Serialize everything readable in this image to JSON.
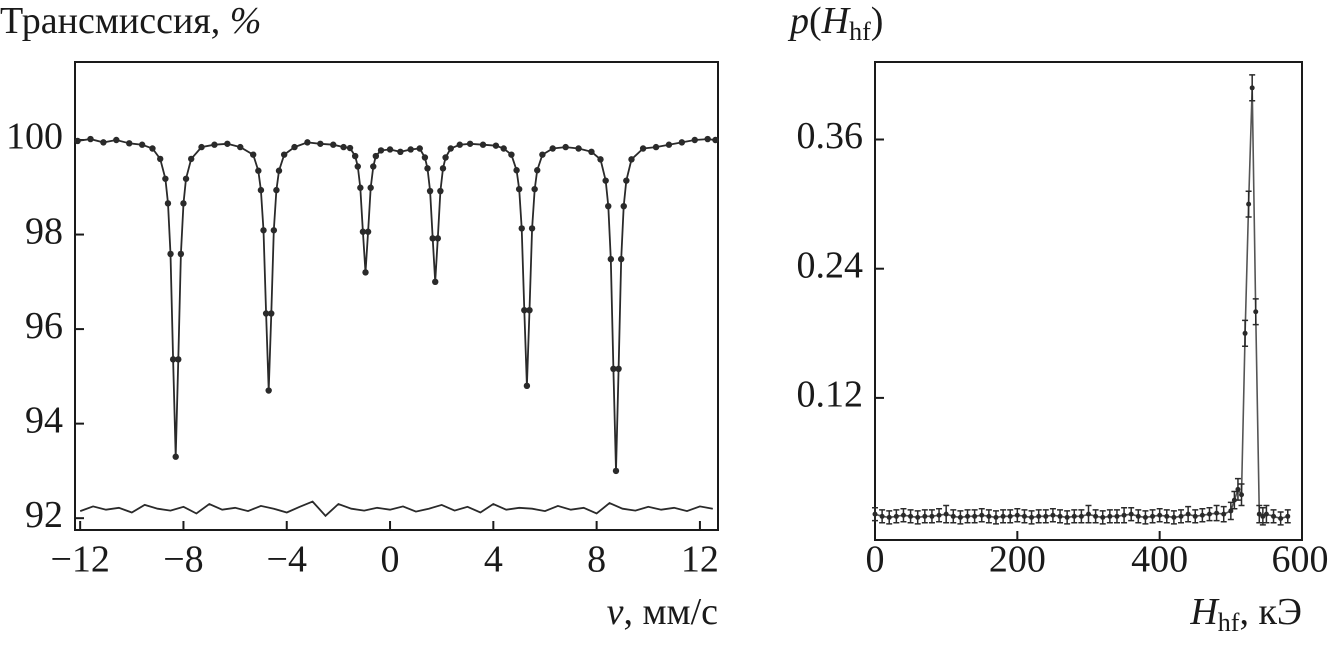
{
  "chart_data": [
    {
      "type": "line",
      "xlabel_parts": [
        "v",
        ", мм/с"
      ],
      "ylabel_parts": [
        "Трансмиссия, ",
        "%"
      ],
      "xlim": [
        -12.2,
        12.7
      ],
      "ylim": [
        91.75,
        101.65
      ],
      "xticks": [
        {
          "value": -12,
          "label": "−12"
        },
        {
          "value": -8,
          "label": "−8"
        },
        {
          "value": -4,
          "label": "−4"
        },
        0,
        4,
        8,
        12
      ],
      "yticks": [
        92,
        94,
        96,
        98,
        100
      ],
      "series": [
        {
          "color": "#2a2a2a",
          "markers": true,
          "x": [
            -12.1,
            -11.6,
            -11.1,
            -10.6,
            -10.1,
            -9.6,
            -9.2,
            -8.9,
            -8.7,
            -8.6,
            -8.5,
            -8.4,
            -8.3,
            -8.2,
            -8.1,
            -8.0,
            -7.9,
            -7.7,
            -7.3,
            -6.8,
            -6.3,
            -5.8,
            -5.3,
            -5.1,
            -5.0,
            -4.9,
            -4.8,
            -4.7,
            -4.6,
            -4.5,
            -4.4,
            -4.3,
            -4.1,
            -3.7,
            -3.2,
            -2.7,
            -2.2,
            -1.8,
            -1.55,
            -1.35,
            -1.25,
            -1.15,
            -1.05,
            -0.95,
            -0.85,
            -0.75,
            -0.65,
            -0.55,
            -0.35,
            0.0,
            0.4,
            0.8,
            1.15,
            1.35,
            1.45,
            1.55,
            1.65,
            1.75,
            1.85,
            1.95,
            2.05,
            2.15,
            2.35,
            2.7,
            3.1,
            3.6,
            4.1,
            4.4,
            4.7,
            4.9,
            5.0,
            5.1,
            5.2,
            5.3,
            5.4,
            5.5,
            5.6,
            5.7,
            5.9,
            6.3,
            6.8,
            7.3,
            7.8,
            8.15,
            8.35,
            8.45,
            8.55,
            8.65,
            8.75,
            8.85,
            8.95,
            9.05,
            9.15,
            9.35,
            9.8,
            10.3,
            10.8,
            11.3,
            11.8,
            12.3,
            12.6
          ],
          "values": [
            99.98,
            100.02,
            99.95,
            100.0,
            99.93,
            99.9,
            99.82,
            99.6,
            99.18,
            98.66,
            97.59,
            95.36,
            93.3,
            95.36,
            97.59,
            98.66,
            99.18,
            99.6,
            99.85,
            99.9,
            99.92,
            99.85,
            99.69,
            99.35,
            98.94,
            98.09,
            96.33,
            94.7,
            96.33,
            98.09,
            98.94,
            99.35,
            99.69,
            99.85,
            99.95,
            99.92,
            99.9,
            99.85,
            99.83,
            99.66,
            99.44,
            98.99,
            98.06,
            97.2,
            98.06,
            98.99,
            99.44,
            99.66,
            99.78,
            99.8,
            99.75,
            99.8,
            99.82,
            99.63,
            99.4,
            98.92,
            97.92,
            97.0,
            97.92,
            98.92,
            99.4,
            99.63,
            99.82,
            99.9,
            99.92,
            99.9,
            99.88,
            99.82,
            99.69,
            99.36,
            98.96,
            98.13,
            96.4,
            94.8,
            96.4,
            98.13,
            98.96,
            99.36,
            99.69,
            99.82,
            99.85,
            99.82,
            99.75,
            99.59,
            99.14,
            98.6,
            97.48,
            95.16,
            93.0,
            95.16,
            97.48,
            98.6,
            99.14,
            99.59,
            99.82,
            99.85,
            99.9,
            99.95,
            100.0,
            100.02,
            100.0
          ]
        },
        {
          "color": "#2a2a2a",
          "markers": false,
          "x": [
            -12.0,
            -11.5,
            -11.0,
            -10.5,
            -10.0,
            -9.5,
            -9.0,
            -8.5,
            -8.0,
            -7.5,
            -7.0,
            -6.5,
            -6.0,
            -5.5,
            -5.0,
            -4.5,
            -4.0,
            -3.5,
            -3.0,
            -2.5,
            -2.0,
            -1.5,
            -1.0,
            -0.5,
            0.0,
            0.5,
            1.0,
            1.5,
            2.0,
            2.5,
            3.0,
            3.5,
            4.0,
            4.5,
            5.0,
            5.5,
            6.0,
            6.5,
            7.0,
            7.5,
            8.0,
            8.5,
            9.0,
            9.5,
            10.0,
            10.5,
            11.0,
            11.5,
            12.0,
            12.5
          ],
          "values": [
            92.15,
            92.25,
            92.18,
            92.22,
            92.12,
            92.28,
            92.2,
            92.16,
            92.24,
            92.1,
            92.3,
            92.18,
            92.22,
            92.15,
            92.26,
            92.2,
            92.12,
            92.24,
            92.35,
            92.05,
            92.3,
            92.2,
            92.16,
            92.22,
            92.18,
            92.25,
            92.14,
            92.2,
            92.28,
            92.16,
            92.24,
            92.12,
            92.3,
            92.18,
            92.22,
            92.2,
            92.15,
            92.26,
            92.18,
            92.22,
            92.1,
            92.32,
            92.2,
            92.16,
            92.24,
            92.18,
            92.22,
            92.15,
            92.25,
            92.2
          ]
        }
      ]
    },
    {
      "type": "scatter",
      "xlabel_parts": [
        "H",
        "hf",
        ", кЭ"
      ],
      "ylabel_parts": [
        "p",
        "(",
        "H",
        "hf",
        ")"
      ],
      "xlim": [
        0,
        600
      ],
      "ylim": [
        -0.012,
        0.432
      ],
      "xticks": [
        0,
        200,
        400,
        600
      ],
      "yticks": [
        0.12,
        0.24,
        0.36
      ],
      "color": "#2a2a2a",
      "x": [
        0,
        10,
        20,
        30,
        40,
        50,
        60,
        70,
        80,
        90,
        100,
        110,
        120,
        130,
        140,
        150,
        160,
        170,
        180,
        190,
        200,
        210,
        220,
        230,
        240,
        250,
        260,
        270,
        280,
        290,
        300,
        310,
        320,
        330,
        340,
        350,
        360,
        370,
        380,
        390,
        400,
        410,
        420,
        430,
        440,
        450,
        460,
        470,
        480,
        490,
        500,
        505,
        510,
        515,
        520,
        525,
        530,
        535,
        540,
        545,
        550,
        560,
        570,
        580
      ],
      "values": [
        0.012,
        0.01,
        0.009,
        0.01,
        0.011,
        0.01,
        0.009,
        0.01,
        0.01,
        0.011,
        0.012,
        0.01,
        0.009,
        0.01,
        0.01,
        0.011,
        0.01,
        0.009,
        0.01,
        0.01,
        0.011,
        0.01,
        0.009,
        0.01,
        0.01,
        0.011,
        0.01,
        0.009,
        0.01,
        0.01,
        0.012,
        0.01,
        0.009,
        0.01,
        0.01,
        0.011,
        0.012,
        0.01,
        0.009,
        0.01,
        0.011,
        0.01,
        0.009,
        0.01,
        0.012,
        0.01,
        0.011,
        0.012,
        0.013,
        0.012,
        0.015,
        0.025,
        0.035,
        0.03,
        0.18,
        0.3,
        0.408,
        0.2,
        0.012,
        0.01,
        0.012,
        0.01,
        0.008,
        0.01
      ],
      "errors": [
        0.006,
        0.006,
        0.006,
        0.006,
        0.006,
        0.006,
        0.006,
        0.006,
        0.006,
        0.006,
        0.008,
        0.006,
        0.006,
        0.006,
        0.006,
        0.006,
        0.006,
        0.006,
        0.006,
        0.006,
        0.006,
        0.006,
        0.006,
        0.006,
        0.006,
        0.006,
        0.006,
        0.006,
        0.006,
        0.006,
        0.008,
        0.006,
        0.006,
        0.006,
        0.006,
        0.007,
        0.006,
        0.006,
        0.006,
        0.006,
        0.006,
        0.006,
        0.006,
        0.006,
        0.007,
        0.006,
        0.006,
        0.006,
        0.007,
        0.007,
        0.008,
        0.008,
        0.01,
        0.01,
        0.012,
        0.012,
        0.012,
        0.012,
        0.008,
        0.008,
        0.008,
        0.006,
        0.006,
        0.006
      ]
    }
  ]
}
